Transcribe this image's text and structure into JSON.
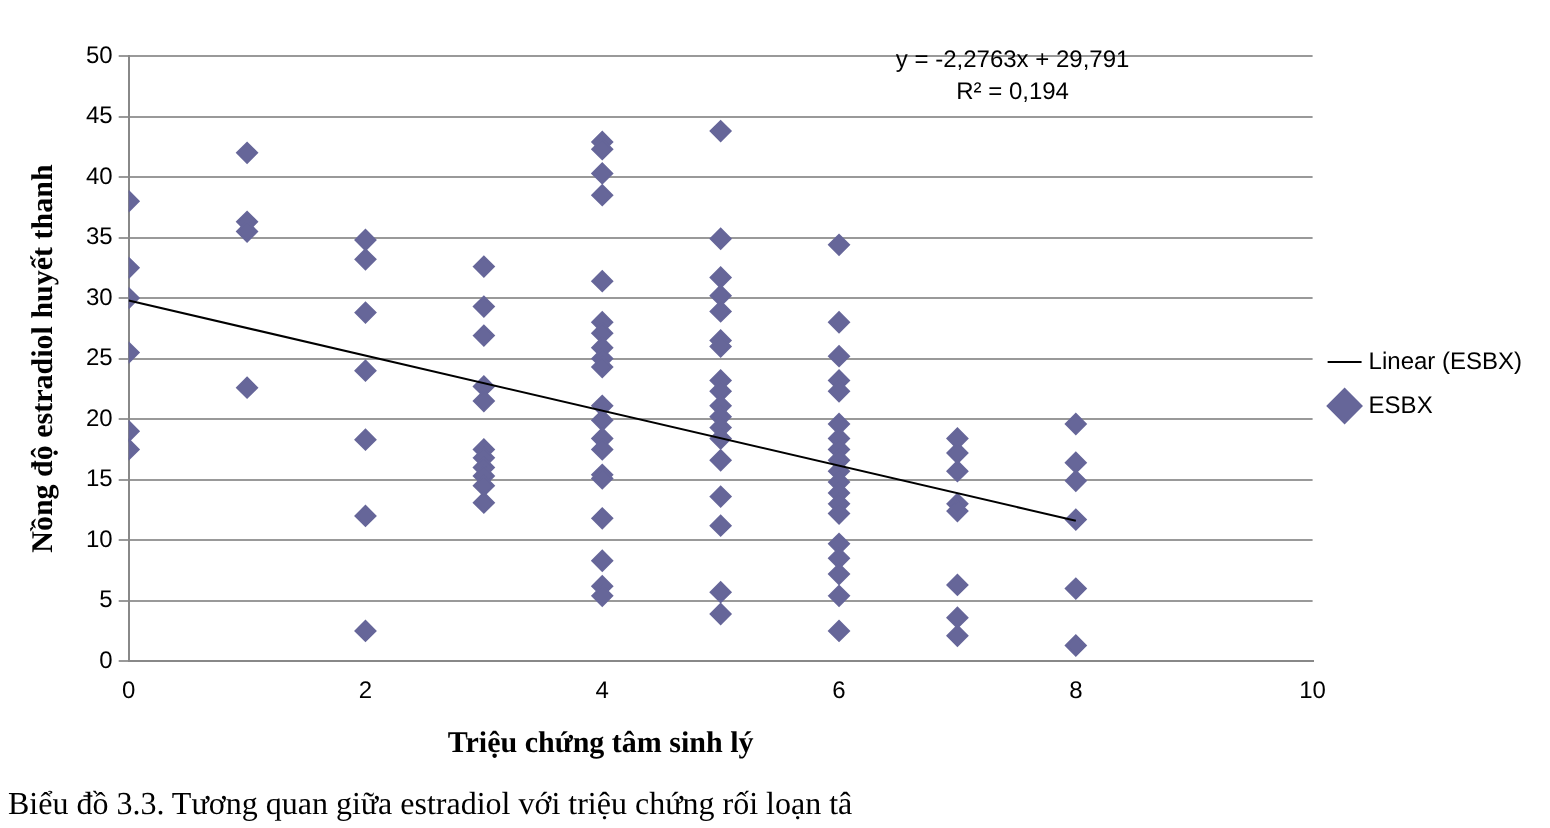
{
  "chart_data": {
    "type": "scatter",
    "xlabel": "Triệu chứng tâm sinh lý",
    "ylabel": "Nồng độ estradiol huyết thanh",
    "xlim": [
      0,
      10
    ],
    "xticks": [
      0,
      2,
      4,
      6,
      8,
      10
    ],
    "ylim": [
      0,
      50
    ],
    "yticks": [
      0,
      5,
      10,
      15,
      20,
      25,
      30,
      35,
      40,
      45,
      50
    ],
    "grid": "y",
    "legend": "right",
    "marker": "diamond",
    "series": [
      {
        "name": "ESBX",
        "type": "scatter",
        "color": "#666699",
        "x": [
          0,
          0,
          0,
          0,
          0,
          0,
          1,
          1,
          1,
          1,
          2,
          2,
          2,
          2,
          2,
          2,
          2,
          3,
          3,
          3,
          3,
          3,
          3,
          3,
          3,
          3,
          3,
          3,
          4,
          4,
          4,
          4,
          4,
          4,
          4,
          4,
          4,
          4,
          4,
          4,
          4,
          4,
          4,
          4,
          4,
          4,
          4,
          4,
          5,
          5,
          5,
          5,
          5,
          5,
          5,
          5,
          5,
          5,
          5,
          5,
          5,
          5,
          5,
          5,
          5,
          5,
          6,
          6,
          6,
          6,
          6,
          6,
          6,
          6,
          6,
          6,
          6,
          6,
          6,
          6,
          6,
          6,
          6,
          6,
          6,
          7,
          7,
          7,
          7,
          7,
          7,
          7,
          7,
          8,
          8,
          8,
          8,
          8,
          8
        ],
        "values": [
          38,
          32.5,
          30,
          25.5,
          19,
          17.5,
          42,
          36.3,
          35.5,
          22.6,
          34.8,
          33.2,
          28.8,
          24,
          18.3,
          12,
          2.5,
          32.6,
          29.3,
          26.9,
          22.7,
          21.5,
          17.5,
          16.8,
          16,
          15.3,
          14.5,
          13.1,
          42.9,
          42.3,
          40.3,
          38.5,
          31.4,
          28,
          27.1,
          25.9,
          25,
          24.3,
          21.1,
          19.9,
          18.4,
          17.5,
          15.4,
          15.1,
          11.8,
          8.3,
          6.2,
          5.4,
          43.8,
          34.9,
          31.7,
          30.2,
          28.9,
          26.5,
          26,
          23.2,
          22.3,
          21.1,
          20.2,
          19.3,
          18.4,
          16.6,
          13.6,
          11.2,
          5.7,
          3.9,
          34.4,
          28,
          25.2,
          23.2,
          22.3,
          19.6,
          18.4,
          17.5,
          16.6,
          15.7,
          14.8,
          13.9,
          13,
          12.2,
          9.7,
          8.5,
          7.2,
          5.4,
          2.5,
          18.4,
          17.2,
          15.7,
          13,
          12.4,
          6.3,
          3.6,
          2.1,
          19.6,
          16.4,
          14.9,
          11.7,
          6,
          1.3
        ]
      },
      {
        "name": "Linear (ESBX)",
        "type": "line",
        "color": "#000000",
        "marker": "none",
        "x": [
          0,
          8
        ],
        "values": [
          29.8,
          11.6
        ]
      }
    ],
    "annotations": [
      "y = -2,2763x + 29,791",
      "R² = 0,194",
      "Biểu đồ 3.3. Tương quan giữa estradiol với triệu chứng rối loạn tâ"
    ]
  }
}
